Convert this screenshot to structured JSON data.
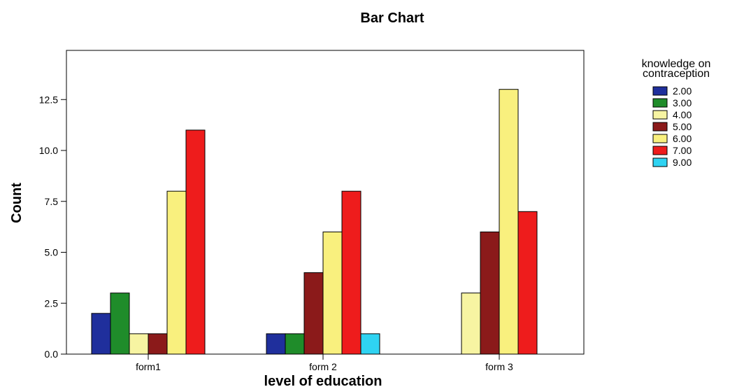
{
  "chart_data": {
    "type": "bar",
    "title": "Bar Chart",
    "xlabel": "level of education",
    "ylabel": "Count",
    "categories": [
      "form1",
      "form 2",
      "form 3"
    ],
    "ylim": [
      0,
      15
    ],
    "yticks": [
      "0.0",
      "2.5",
      "5.0",
      "7.5",
      "10.0",
      "12.5"
    ],
    "ytick_values": [
      0,
      2.5,
      5,
      7.5,
      10,
      12.5
    ],
    "legend_title": [
      "knowledge on",
      "contraception"
    ],
    "legend_placement": "right",
    "grid": false,
    "series": [
      {
        "name": "2.00",
        "color": "#1f2f9c",
        "values": [
          2,
          1,
          0
        ]
      },
      {
        "name": "3.00",
        "color": "#1f8c2a",
        "values": [
          3,
          1,
          0
        ]
      },
      {
        "name": "4.00",
        "color": "#f7f4a2",
        "values": [
          1,
          0,
          3
        ]
      },
      {
        "name": "5.00",
        "color": "#8b1a1a",
        "values": [
          1,
          4,
          6
        ]
      },
      {
        "name": "6.00",
        "color": "#f9f07e",
        "values": [
          8,
          6,
          13
        ]
      },
      {
        "name": "7.00",
        "color": "#ee1c1c",
        "values": [
          11,
          8,
          7
        ]
      },
      {
        "name": "9.00",
        "color": "#2fd3f2",
        "values": [
          0,
          1,
          0
        ]
      }
    ]
  }
}
